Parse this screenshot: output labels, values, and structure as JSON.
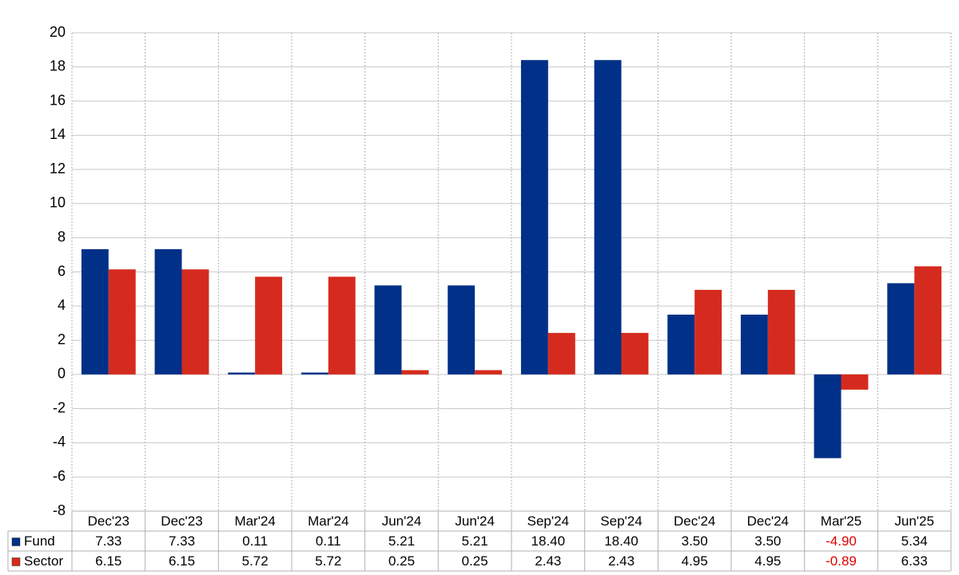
{
  "chart_data": {
    "type": "bar",
    "categories": [
      "Dec'23",
      "Dec'23",
      "Mar'24",
      "Mar'24",
      "Jun'24",
      "Jun'24",
      "Sep'24",
      "Sep'24",
      "Dec'24",
      "Dec'24",
      "Mar'25",
      "Jun'25"
    ],
    "series": [
      {
        "name": "Fund",
        "color": "#003087",
        "values": [
          7.33,
          7.33,
          0.11,
          0.11,
          5.21,
          5.21,
          18.4,
          18.4,
          3.5,
          3.5,
          -4.9,
          5.34
        ],
        "value_labels": [
          "7.33",
          "7.33",
          "0.11",
          "0.11",
          "5.21",
          "5.21",
          "18.40",
          "18.40",
          "3.50",
          "3.50",
          "-4.90",
          "5.34"
        ]
      },
      {
        "name": "Sector",
        "color": "#d52b1e",
        "values": [
          6.15,
          6.15,
          5.72,
          5.72,
          0.25,
          0.25,
          2.43,
          2.43,
          4.95,
          4.95,
          -0.89,
          6.33
        ],
        "value_labels": [
          "6.15",
          "6.15",
          "5.72",
          "5.72",
          "0.25",
          "0.25",
          "2.43",
          "2.43",
          "4.95",
          "4.95",
          "-0.89",
          "6.33"
        ]
      }
    ],
    "ylim": [
      -8,
      20
    ],
    "yticks": [
      -8,
      -6,
      -4,
      -2,
      0,
      2,
      4,
      6,
      8,
      10,
      12,
      14,
      16,
      18,
      20
    ],
    "grid": true
  }
}
